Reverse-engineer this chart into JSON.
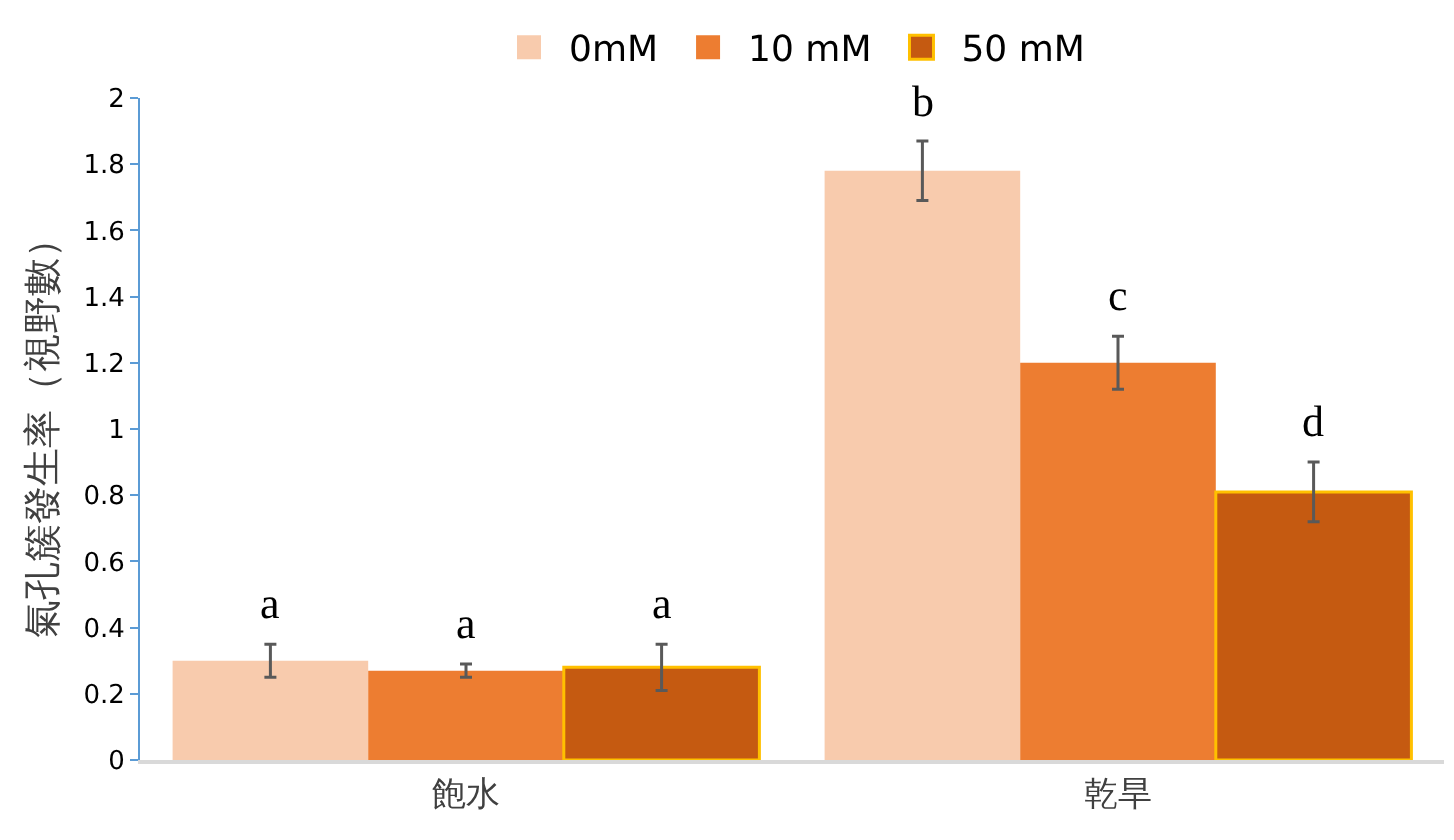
{
  "chart_data": {
    "type": "bar",
    "ylabel": "氣孔簇發生率（視野數）",
    "categories": [
      "飽水",
      "乾旱"
    ],
    "series": [
      {
        "name": "0mM",
        "color": "#f8cbad",
        "values": [
          0.3,
          1.78
        ],
        "errors": [
          0.05,
          0.09
        ],
        "value_labels": [
          "a",
          "b"
        ]
      },
      {
        "name": "10 mM",
        "color": "#ed7d31",
        "values": [
          0.27,
          1.2
        ],
        "errors": [
          0.02,
          0.08
        ],
        "value_labels": [
          "a",
          "c"
        ]
      },
      {
        "name": "50 mM",
        "color": "#c55a11",
        "values": [
          0.28,
          0.81
        ],
        "errors": [
          0.07,
          0.09
        ],
        "value_labels": [
          "a",
          "d"
        ]
      }
    ],
    "ylim": [
      0,
      2
    ],
    "yticks": [
      0,
      0.2,
      0.4,
      0.6,
      0.8,
      1,
      1.2,
      1.4,
      1.6,
      1.8,
      2
    ],
    "legend": "top"
  }
}
